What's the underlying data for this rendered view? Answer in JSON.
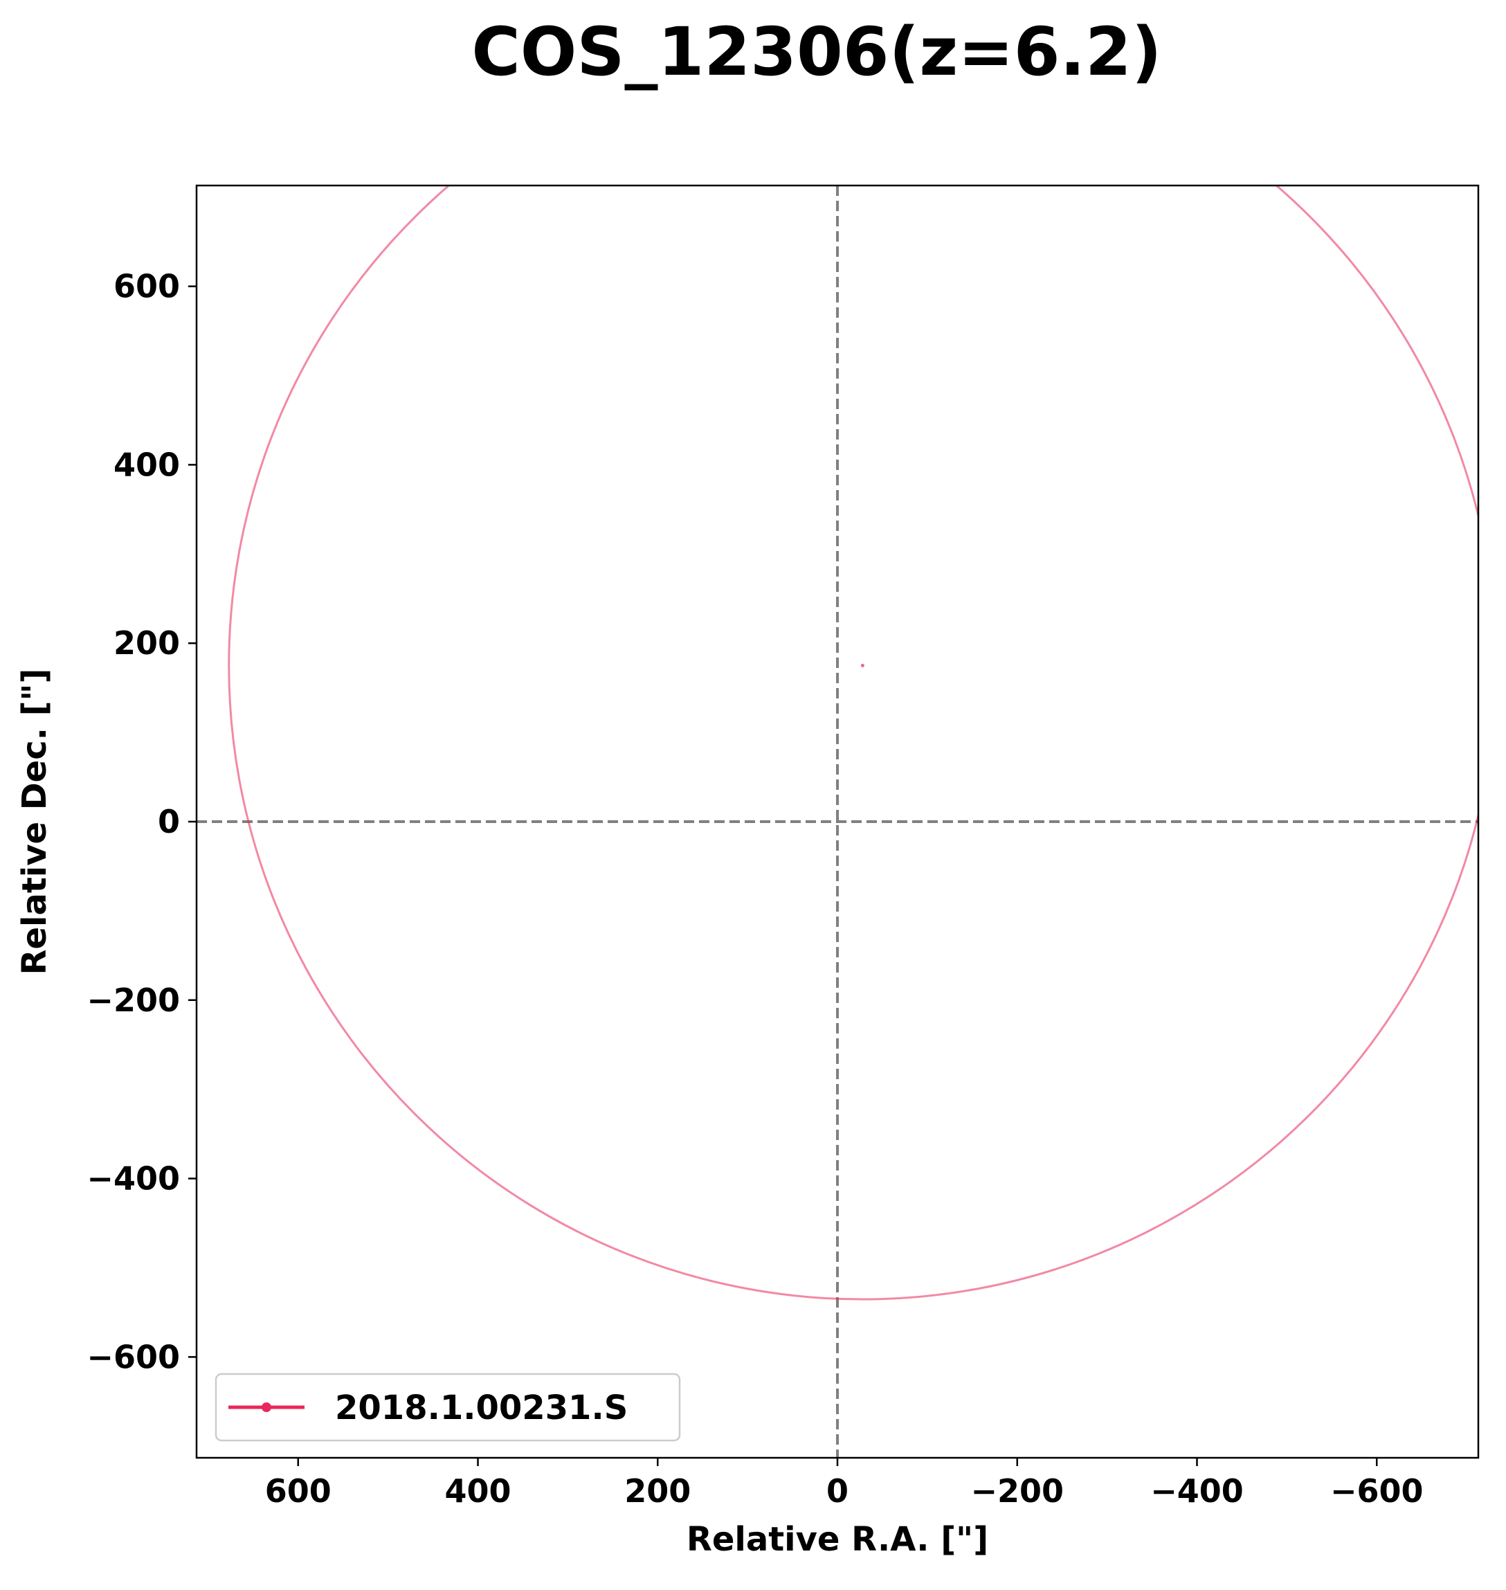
{
  "chart_data": {
    "type": "scatter",
    "title": "COS_12306(z=6.2)",
    "xlabel": "Relative R.A. [\"]",
    "ylabel": "Relative Dec. [\"]",
    "xlim": [
      713,
      -713
    ],
    "ylim": [
      -713,
      713
    ],
    "xticks": [
      600,
      400,
      200,
      0,
      -200,
      -400,
      -600
    ],
    "yticks": [
      -600,
      -400,
      -200,
      0,
      200,
      400,
      600
    ],
    "x_tick_labels": [
      "600",
      "400",
      "200",
      "0",
      "−200",
      "−400",
      "−600"
    ],
    "y_tick_labels": [
      "−600",
      "−400",
      "−200",
      "0",
      "200",
      "400",
      "600"
    ],
    "reference_lines": {
      "x": 0,
      "y": 0,
      "style": "dashed",
      "color": "#808080"
    },
    "grid": false,
    "legend_position": "lower-left",
    "series": [
      {
        "name": "2018.1.00231.S",
        "color": "#e8285a",
        "points": [
          {
            "x": -28,
            "y": 175
          }
        ],
        "circles": [
          {
            "center_x": -28,
            "center_y": 175,
            "radius": 705
          }
        ]
      }
    ]
  }
}
